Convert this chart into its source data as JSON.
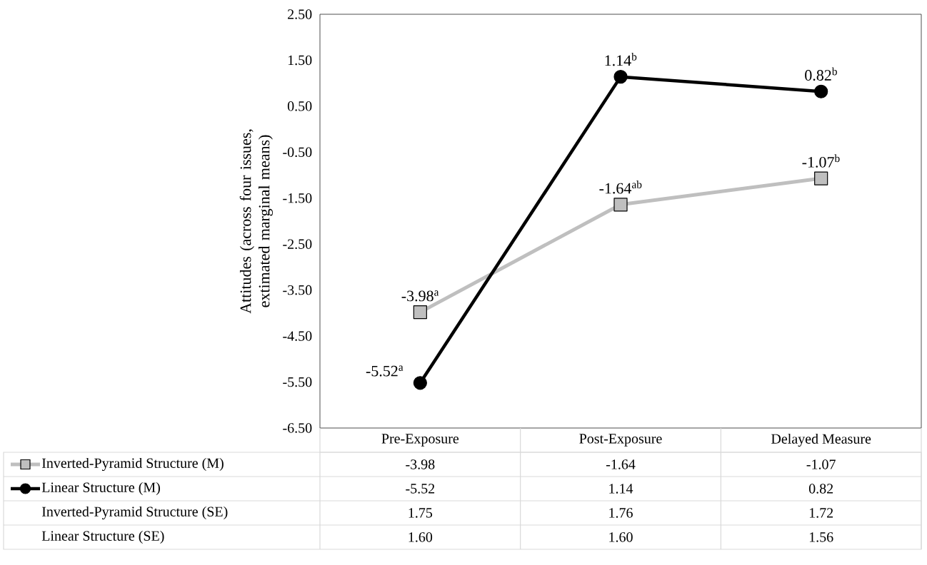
{
  "chart_data": {
    "type": "line",
    "ylabel": "Attitudes (across four issues, extimated marginal means)",
    "categories": [
      "Pre-Exposure",
      "Post-Exposure",
      "Delayed Measure"
    ],
    "series": [
      {
        "name": "Inverted-Pyramid Structure (M)",
        "color": "#bfbfbf",
        "marker": "square",
        "values": [
          -3.98,
          -1.64,
          -1.07
        ],
        "value_labels": [
          "-3.98$^{a}$",
          "-1.64$^{ab}$",
          "-1.07$^{b}$"
        ]
      },
      {
        "name": "Linear Structure (M)",
        "color": "#000000",
        "marker": "circle",
        "values": [
          -5.52,
          1.14,
          0.82
        ],
        "value_labels": [
          "-5.52$^{a}$",
          "1.14$^{b}$",
          "0.82$^{b}$"
        ]
      }
    ],
    "annotations": [
      "-3.98",
      "-1.64",
      "-1.07",
      "-5.52",
      "1.14",
      "0.82",
      "Inverted-Pyramid Structure (SE)",
      "1.75",
      "1.76",
      "1.72",
      "Linear Structure (SE)",
      "1.60",
      "1.60",
      "1.56"
    ],
    "ylim": [
      -6.5,
      2.5
    ],
    "yticks": [
      {
        "value": -6.5,
        "label": "-6.50"
      },
      {
        "value": -5.5,
        "label": "-5.50"
      },
      {
        "value": -4.5,
        "label": "-4.50"
      },
      {
        "value": -3.5,
        "label": "-3.50"
      },
      {
        "value": -2.5,
        "label": "-2.50"
      },
      {
        "value": -1.5,
        "label": "-1.50"
      },
      {
        "value": -0.5,
        "label": "-0.50"
      },
      {
        "value": 0.5,
        "label": "0.50"
      },
      {
        "value": 1.5,
        "label": "1.50"
      },
      {
        "value": 2.5,
        "label": "2.50"
      }
    ],
    "grid": false,
    "legend": "bottom",
    "tick_labels": "y",
    "line_style": "solid"
  }
}
